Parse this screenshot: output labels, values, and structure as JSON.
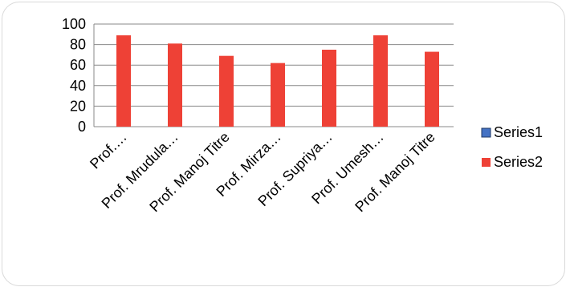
{
  "chart_data": {
    "type": "bar",
    "categories": [
      "Prof.…",
      "Prof. Mrudula…",
      "Prof. Manoj Titre",
      "Prof. Mirza…",
      "Prof. Supriya…",
      "Prof. Umesh…",
      "Prof. Manoj Titre"
    ],
    "series": [
      {
        "name": "Series1",
        "values": [
          0,
          0,
          0,
          0,
          0,
          0,
          0
        ],
        "color": "#4472c4"
      },
      {
        "name": "Series2",
        "values": [
          89,
          81,
          69,
          62,
          75,
          89,
          73
        ],
        "color": "#ee4136"
      }
    ],
    "y_ticks": [
      "0",
      "20",
      "40",
      "60",
      "80",
      "100"
    ],
    "ylim": [
      0,
      100
    ],
    "grid": true,
    "legend_position": "right"
  }
}
